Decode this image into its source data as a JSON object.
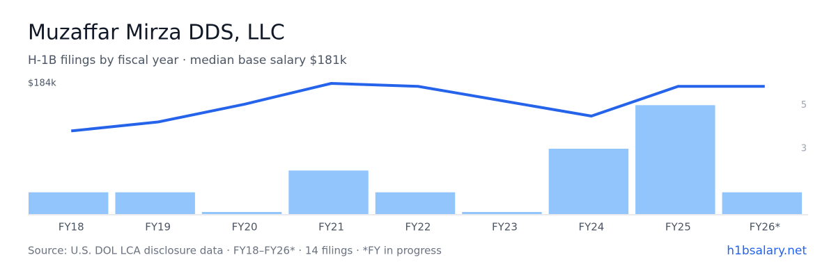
{
  "chart_data": {
    "type": "bar-line",
    "title": "Muzaffar Mirza DDS, LLC",
    "subtitle": "H-1B filings by fiscal year · median base salary $181k",
    "categories": [
      "FY18",
      "FY19",
      "FY20",
      "FY21",
      "FY22",
      "FY23",
      "FY24",
      "FY25",
      "FY26*"
    ],
    "series": [
      {
        "name": "Filings",
        "type": "bar",
        "axis": "y2",
        "color": "#93c5fd",
        "values": [
          1,
          1,
          0,
          2,
          1,
          0,
          3,
          5,
          1
        ]
      },
      {
        "name": "Median salary",
        "type": "line",
        "color": "#2563eb",
        "values": [
          168000,
          171000,
          177000,
          184000,
          183000,
          178000,
          173000,
          183000,
          183000
        ]
      }
    ],
    "ylim": [
      140000,
      184000
    ],
    "yticks": [
      {
        "value": 184000,
        "label": "$184k"
      }
    ],
    "y2lim": [
      0,
      6
    ],
    "y2ticks": [
      3,
      5
    ],
    "source": "Source: U.S. DOL LCA disclosure data · FY18–FY26* · 14 filings · *FY in progress",
    "link": "h1bsalary.net"
  }
}
